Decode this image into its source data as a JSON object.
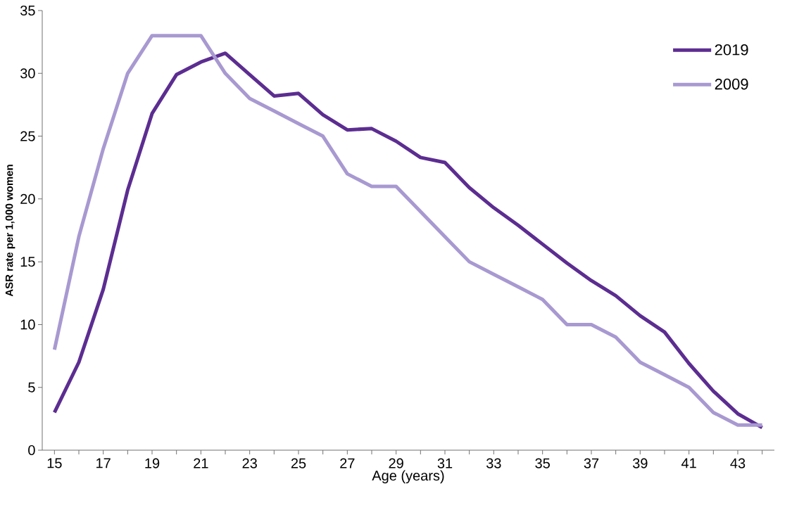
{
  "chart_data": {
    "type": "line",
    "xlabel": "Age (years)",
    "ylabel": "ASR rate per 1,000 women",
    "categories": [
      "15",
      null,
      "17",
      null,
      "19",
      null,
      "21",
      null,
      "23",
      null,
      "25",
      null,
      "27",
      null,
      "29",
      null,
      "31",
      null,
      "33",
      null,
      "35",
      null,
      "37",
      null,
      "39",
      null,
      "41",
      null,
      "43",
      null
    ],
    "series": [
      {
        "name": "2019",
        "color": "#5c2d91",
        "values": [
          3,
          7,
          12.8,
          20.7,
          26.8,
          29.9,
          30.9,
          31.6,
          29.9,
          28.2,
          28.4,
          26.7,
          25.5,
          25.6,
          24.6,
          23.3,
          22.9,
          20.9,
          19.3,
          17.9,
          16.4,
          14.9,
          13.5,
          12.3,
          10.7,
          9.4,
          6.9,
          4.7,
          2.9,
          1.8
        ]
      },
      {
        "name": "2009",
        "color": "#a899d1",
        "values": [
          8,
          17,
          24,
          30,
          33,
          33,
          33,
          30,
          28,
          27,
          26,
          25,
          22,
          21,
          21,
          19,
          17,
          15,
          14,
          13,
          12,
          10,
          10,
          9,
          7,
          6,
          5,
          3,
          2,
          2
        ]
      }
    ],
    "ylim": [
      0,
      35
    ],
    "yticks": [
      0,
      5,
      10,
      15,
      20,
      25,
      30,
      35
    ],
    "grid": false,
    "legend": "top right",
    "marker": "none",
    "line_style": "solid"
  }
}
